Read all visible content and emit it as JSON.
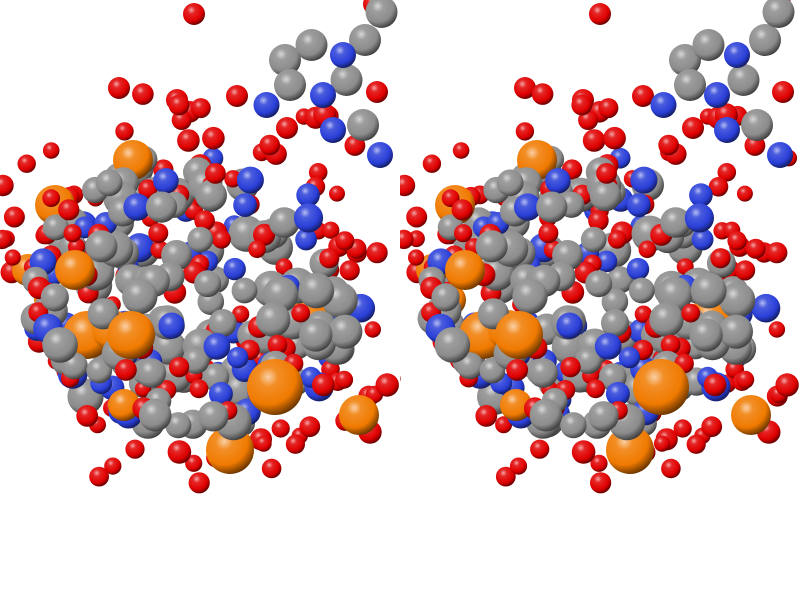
{
  "viewer": {
    "mode": "stereo-pair",
    "background": "#ffffff",
    "views": [
      "left-eye",
      "right-eye"
    ]
  },
  "atom_colors": {
    "carbon": "#8c8c8c",
    "nitrogen": "#2a3fd8",
    "oxygen": "#e00000",
    "phosphorus": "#f07a00"
  },
  "icons": {
    "carbon": "carbon-atom-icon",
    "nitrogen": "nitrogen-atom-icon",
    "oxygen": "oxygen-atom-icon",
    "phosphorus": "phosphorus-atom-icon"
  }
}
